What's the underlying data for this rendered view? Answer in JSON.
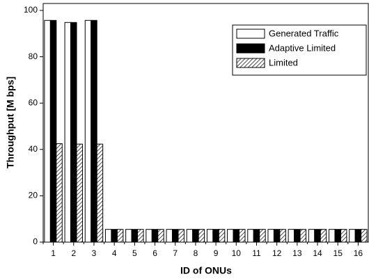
{
  "chart_data": {
    "type": "bar",
    "x_label": "ID of ONUs",
    "y_label": "Throughput [M bps]",
    "categories": [
      "1",
      "2",
      "3",
      "4",
      "5",
      "6",
      "7",
      "8",
      "9",
      "10",
      "11",
      "12",
      "13",
      "14",
      "15",
      "16"
    ],
    "series": [
      {
        "name": "Generated Traffic",
        "color": "#ffffff",
        "fill_style": "solid",
        "values": [
          95.7,
          94.8,
          95.7,
          5.5,
          5.5,
          5.5,
          5.5,
          5.5,
          5.5,
          5.5,
          5.5,
          5.5,
          5.5,
          5.5,
          5.5,
          5.5
        ]
      },
      {
        "name": "Adaptive Limited",
        "color": "#000000",
        "fill_style": "solid",
        "values": [
          95.7,
          94.8,
          95.7,
          5.5,
          5.5,
          5.5,
          5.5,
          5.5,
          5.5,
          5.5,
          5.5,
          5.5,
          5.5,
          5.5,
          5.5,
          5.5
        ]
      },
      {
        "name": "Limited",
        "color": "#000000",
        "fill_style": "hatch",
        "values": [
          42.5,
          42.3,
          42.3,
          5.5,
          5.5,
          5.5,
          5.5,
          5.5,
          5.5,
          5.5,
          5.5,
          5.5,
          5.5,
          5.5,
          5.5,
          5.5
        ]
      }
    ],
    "ylim": [
      0,
      103
    ],
    "yticks": [
      0,
      20,
      40,
      60,
      80,
      100
    ],
    "legend": "top-right",
    "grid": false
  }
}
